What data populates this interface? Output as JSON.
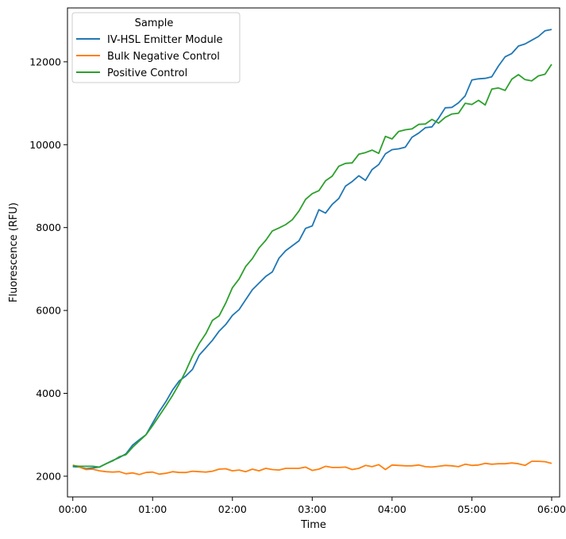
{
  "chart_data": {
    "type": "line",
    "xlabel": "Time",
    "ylabel": "Fluorescence (RFU)",
    "x_range_minutes": [
      -4,
      366
    ],
    "ylim": [
      1500,
      13300
    ],
    "x_ticks": [
      {
        "minutes": 0,
        "label": "00:00"
      },
      {
        "minutes": 60,
        "label": "01:00"
      },
      {
        "minutes": 120,
        "label": "02:00"
      },
      {
        "minutes": 180,
        "label": "03:00"
      },
      {
        "minutes": 240,
        "label": "04:00"
      },
      {
        "minutes": 300,
        "label": "05:00"
      },
      {
        "minutes": 360,
        "label": "06:00"
      }
    ],
    "y_ticks": [
      {
        "value": 2000,
        "label": "2000"
      },
      {
        "value": 4000,
        "label": "4000"
      },
      {
        "value": 6000,
        "label": "6000"
      },
      {
        "value": 8000,
        "label": "8000"
      },
      {
        "value": 10000,
        "label": "10000"
      },
      {
        "value": 12000,
        "label": "12000"
      }
    ],
    "grid": false,
    "legend": {
      "title": "Sample",
      "position": "upper-left"
    },
    "x_minutes": [
      0,
      5,
      10,
      15,
      20,
      25,
      30,
      35,
      40,
      45,
      50,
      55,
      60,
      65,
      70,
      75,
      80,
      85,
      90,
      95,
      100,
      105,
      110,
      115,
      120,
      125,
      130,
      135,
      140,
      145,
      150,
      155,
      160,
      165,
      170,
      175,
      180,
      185,
      190,
      195,
      200,
      205,
      210,
      215,
      220,
      225,
      230,
      235,
      240,
      245,
      250,
      255,
      260,
      265,
      270,
      275,
      280,
      285,
      290,
      295,
      300,
      305,
      310,
      315,
      320,
      325,
      330,
      335,
      340,
      345,
      350,
      355,
      360
    ],
    "series": [
      {
        "name": "IV-HSL Emitter Module",
        "color": "#1f77b4",
        "values": [
          2230,
          2220,
          2180,
          2200,
          2220,
          2300,
          2380,
          2450,
          2540,
          2750,
          2880,
          3000,
          3280,
          3560,
          3800,
          4080,
          4300,
          4420,
          4580,
          4920,
          5100,
          5280,
          5500,
          5660,
          5880,
          6020,
          6260,
          6500,
          6660,
          6820,
          6930,
          7260,
          7440,
          7560,
          7680,
          7980,
          8040,
          8430,
          8350,
          8560,
          8700,
          9000,
          9110,
          9250,
          9140,
          9400,
          9520,
          9780,
          9880,
          9900,
          9940,
          10180,
          10280,
          10410,
          10430,
          10640,
          10890,
          10900,
          11010,
          11180,
          11560,
          11590,
          11600,
          11640,
          11900,
          12120,
          12200,
          12380,
          12430,
          12520,
          12610,
          12750,
          12780
        ]
      },
      {
        "name": "Bulk Negative Control",
        "color": "#ff7f0e",
        "values": [
          2270,
          2220,
          2160,
          2170,
          2130,
          2110,
          2100,
          2110,
          2060,
          2080,
          2040,
          2090,
          2100,
          2050,
          2070,
          2110,
          2090,
          2090,
          2120,
          2110,
          2100,
          2120,
          2170,
          2180,
          2130,
          2150,
          2110,
          2170,
          2130,
          2190,
          2160,
          2150,
          2190,
          2190,
          2190,
          2220,
          2140,
          2170,
          2240,
          2210,
          2210,
          2220,
          2160,
          2190,
          2260,
          2230,
          2280,
          2160,
          2270,
          2260,
          2250,
          2250,
          2270,
          2230,
          2220,
          2240,
          2260,
          2250,
          2230,
          2290,
          2260,
          2270,
          2310,
          2290,
          2300,
          2300,
          2320,
          2300,
          2260,
          2360,
          2360,
          2350,
          2310
        ]
      },
      {
        "name": "Positive Control",
        "color": "#2ca02c",
        "values": [
          2250,
          2240,
          2240,
          2240,
          2220,
          2300,
          2370,
          2470,
          2520,
          2700,
          2850,
          3000,
          3220,
          3460,
          3700,
          3950,
          4230,
          4540,
          4900,
          5200,
          5440,
          5760,
          5870,
          6180,
          6550,
          6760,
          7060,
          7250,
          7510,
          7690,
          7920,
          7990,
          8070,
          8190,
          8400,
          8680,
          8820,
          8890,
          9130,
          9240,
          9480,
          9550,
          9560,
          9770,
          9810,
          9870,
          9790,
          10200,
          10140,
          10320,
          10360,
          10380,
          10490,
          10500,
          10610,
          10520,
          10660,
          10740,
          10760,
          11000,
          10970,
          11070,
          10960,
          11340,
          11370,
          11310,
          11580,
          11690,
          11570,
          11540,
          11660,
          11700,
          11940
        ]
      }
    ]
  }
}
